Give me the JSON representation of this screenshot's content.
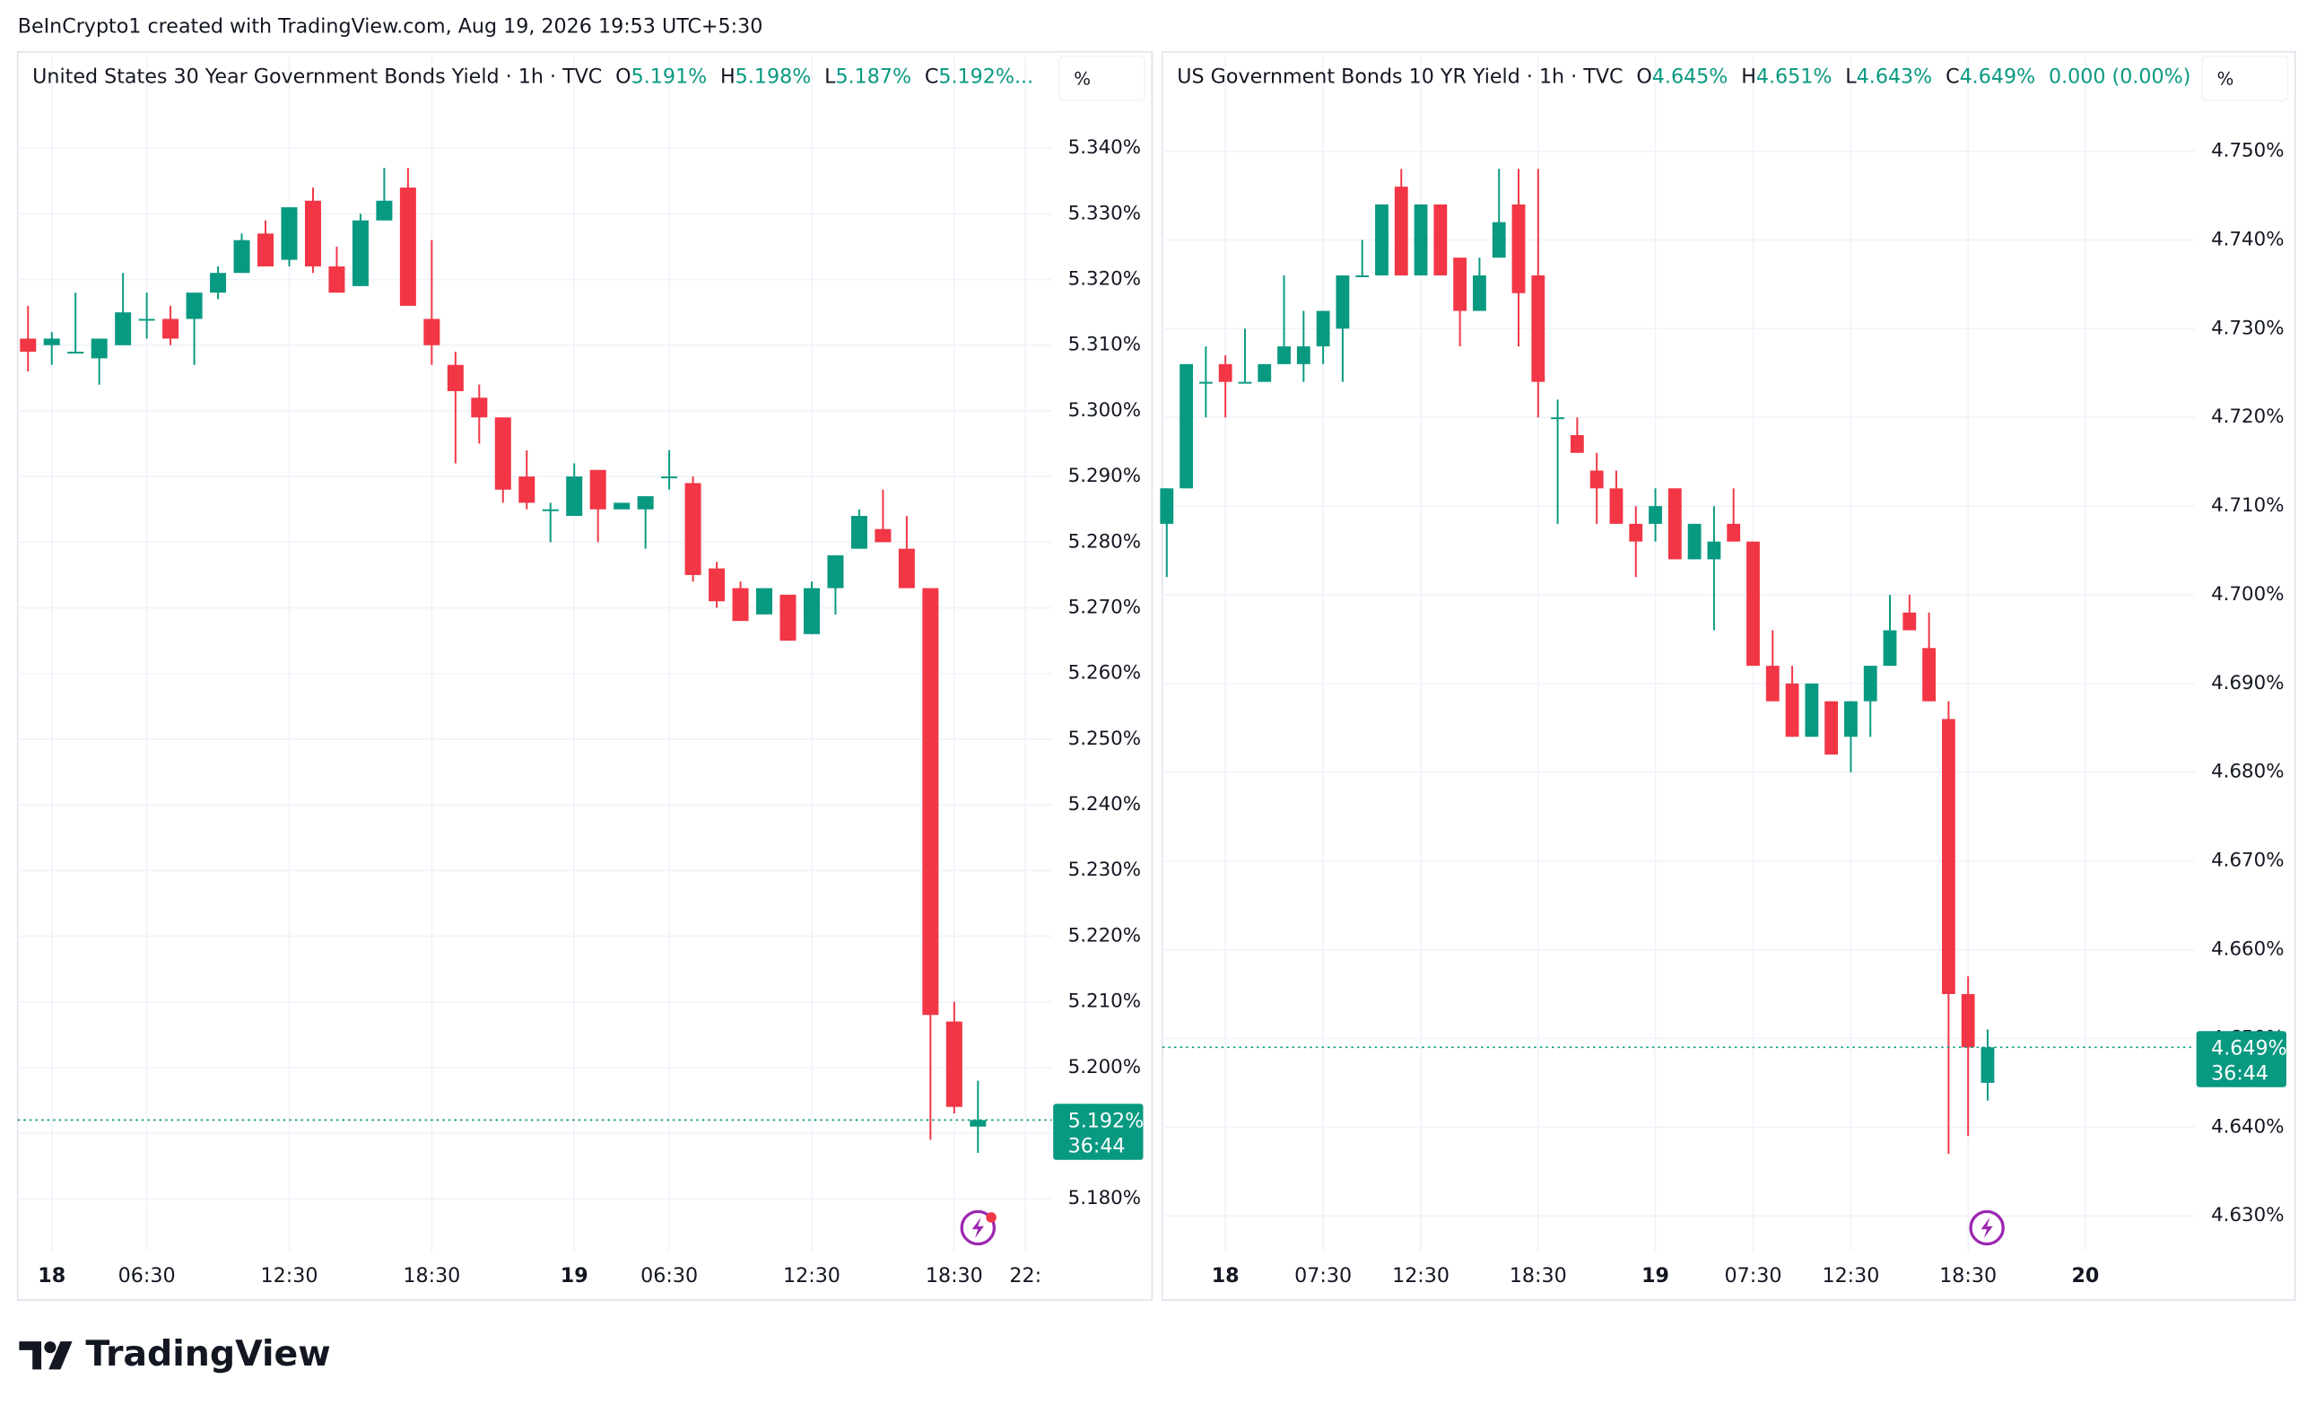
{
  "attribution": "BeInCrypto1 created with TradingView.com, Aug 19, 2026 19:53 UTC+5:30",
  "brand": "TradingView",
  "chart_data": [
    {
      "type": "candlestick",
      "title": "United States 30 Year Government Bonds Yield · 1h · TVC",
      "header_values": [
        {
          "key": "O",
          "value": "5.191%"
        },
        {
          "key": "H",
          "value": "5.198%"
        },
        {
          "key": "L",
          "value": "5.187%"
        },
        {
          "key": "C",
          "value": "5.192%..."
        }
      ],
      "unit": "%",
      "price_label": "5.192%",
      "countdown": "36:44",
      "up_color": "#089981",
      "down_color": "#f23645",
      "grid": true,
      "categories": [
        null,
        "18",
        null,
        null,
        null,
        "06:30",
        null,
        null,
        null,
        null,
        null,
        "12:30",
        null,
        null,
        null,
        null,
        null,
        "18:30",
        null,
        null,
        null,
        null,
        null,
        "19",
        null,
        null,
        null,
        "06:30",
        null,
        null,
        null,
        null,
        null,
        "12:30",
        null,
        null,
        null,
        null,
        null,
        "18:30",
        null,
        null,
        "22:"
      ],
      "open": [
        5.311,
        5.31,
        5.309,
        5.308,
        5.31,
        5.314,
        5.314,
        5.314,
        5.318,
        5.321,
        5.327,
        5.323,
        5.332,
        5.322,
        5.319,
        5.329,
        5.334,
        5.314,
        5.307,
        5.302,
        5.299,
        5.29,
        5.285,
        5.284,
        5.291,
        5.285,
        5.285,
        5.29,
        5.289,
        5.276,
        5.273,
        5.269,
        5.272,
        5.266,
        5.273,
        5.279,
        5.282,
        5.279,
        5.273,
        5.207,
        5.191,
        null,
        null
      ],
      "high": [
        5.316,
        5.312,
        5.318,
        5.311,
        5.321,
        5.318,
        5.316,
        5.318,
        5.322,
        5.327,
        5.329,
        5.331,
        5.334,
        5.325,
        5.33,
        5.337,
        5.337,
        5.326,
        5.309,
        5.304,
        5.299,
        5.294,
        5.286,
        5.292,
        5.291,
        5.286,
        5.287,
        5.294,
        5.29,
        5.277,
        5.274,
        5.273,
        5.272,
        5.274,
        5.278,
        5.285,
        5.288,
        5.284,
        5.273,
        5.21,
        5.198,
        null,
        null
      ],
      "low": [
        5.306,
        5.307,
        5.309,
        5.304,
        5.31,
        5.311,
        5.31,
        5.307,
        5.317,
        5.321,
        5.322,
        5.322,
        5.321,
        5.318,
        5.319,
        5.329,
        5.316,
        5.307,
        5.292,
        5.295,
        5.286,
        5.285,
        5.28,
        5.284,
        5.28,
        5.285,
        5.279,
        5.288,
        5.274,
        5.27,
        5.268,
        5.269,
        5.265,
        5.266,
        5.269,
        5.279,
        5.28,
        5.273,
        5.189,
        5.193,
        5.187,
        null,
        null
      ],
      "close": [
        5.309,
        5.311,
        5.309,
        5.311,
        5.315,
        5.314,
        5.311,
        5.318,
        5.321,
        5.326,
        5.322,
        5.331,
        5.322,
        5.318,
        5.329,
        5.332,
        5.316,
        5.31,
        5.303,
        5.299,
        5.288,
        5.286,
        5.285,
        5.29,
        5.285,
        5.286,
        5.287,
        5.29,
        5.275,
        5.271,
        5.268,
        5.273,
        5.265,
        5.273,
        5.278,
        5.284,
        5.28,
        5.273,
        5.208,
        5.194,
        5.192,
        null,
        null
      ],
      "ylim": [
        5.172,
        5.354
      ],
      "yticks": [
        {
          "value": 5.18,
          "label": "5.180%"
        },
        {
          "value": 5.19,
          "label": "5.190%"
        },
        {
          "value": 5.2,
          "label": "5.200%"
        },
        {
          "value": 5.21,
          "label": "5.210%"
        },
        {
          "value": 5.22,
          "label": "5.220%"
        },
        {
          "value": 5.23,
          "label": "5.230%"
        },
        {
          "value": 5.24,
          "label": "5.240%"
        },
        {
          "value": 5.25,
          "label": "5.250%"
        },
        {
          "value": 5.26,
          "label": "5.260%"
        },
        {
          "value": 5.27,
          "label": "5.270%"
        },
        {
          "value": 5.28,
          "label": "5.280%"
        },
        {
          "value": 5.29,
          "label": "5.290%"
        },
        {
          "value": 5.3,
          "label": "5.300%"
        },
        {
          "value": 5.31,
          "label": "5.310%"
        },
        {
          "value": 5.32,
          "label": "5.320%"
        },
        {
          "value": 5.33,
          "label": "5.330%"
        },
        {
          "value": 5.34,
          "label": "5.340%"
        }
      ]
    },
    {
      "type": "candlestick",
      "title": "US Government Bonds 10 YR Yield · 1h · TVC",
      "header_values": [
        {
          "key": "O",
          "value": "4.645%"
        },
        {
          "key": "H",
          "value": "4.651%"
        },
        {
          "key": "L",
          "value": "4.643%"
        },
        {
          "key": "C",
          "value": "4.649%"
        },
        {
          "value": "0.000 (0.00%)"
        }
      ],
      "unit": "%",
      "price_label": "4.649%",
      "countdown": "36:44",
      "up_color": "#089981",
      "down_color": "#f23645",
      "grid": true,
      "categories": [
        null,
        null,
        null,
        "18",
        null,
        null,
        null,
        null,
        "07:30",
        null,
        null,
        null,
        null,
        "12:30",
        null,
        null,
        null,
        null,
        null,
        "18:30",
        null,
        null,
        null,
        null,
        null,
        "19",
        null,
        null,
        null,
        null,
        "07:30",
        null,
        null,
        null,
        null,
        "12:30",
        null,
        null,
        null,
        null,
        null,
        "18:30",
        null,
        null,
        null,
        null,
        null,
        "20"
      ],
      "open": [
        4.708,
        4.712,
        4.724,
        4.726,
        4.724,
        4.724,
        4.726,
        4.726,
        4.728,
        4.73,
        4.736,
        4.736,
        4.746,
        4.736,
        4.744,
        4.738,
        4.732,
        4.738,
        4.744,
        4.736,
        4.72,
        4.718,
        4.714,
        4.712,
        4.708,
        4.708,
        4.712,
        4.704,
        4.704,
        4.708,
        4.706,
        4.692,
        4.69,
        4.684,
        4.688,
        4.684,
        4.688,
        4.692,
        4.698,
        4.694,
        4.686,
        4.655,
        4.645,
        null,
        null,
        null,
        null,
        null
      ],
      "high": [
        4.712,
        4.726,
        4.728,
        4.727,
        4.73,
        4.726,
        4.736,
        4.732,
        4.732,
        4.736,
        4.74,
        4.744,
        4.748,
        4.744,
        4.744,
        4.738,
        4.738,
        4.748,
        4.748,
        4.748,
        4.722,
        4.72,
        4.716,
        4.714,
        4.71,
        4.712,
        4.712,
        4.708,
        4.71,
        4.712,
        4.706,
        4.696,
        4.692,
        4.69,
        4.688,
        4.688,
        4.692,
        4.7,
        4.7,
        4.698,
        4.688,
        4.657,
        4.651,
        null,
        null,
        null,
        null,
        null
      ],
      "low": [
        4.702,
        4.712,
        4.72,
        4.72,
        4.724,
        4.724,
        4.726,
        4.724,
        4.726,
        4.724,
        4.736,
        4.736,
        4.736,
        4.736,
        4.736,
        4.728,
        4.732,
        4.738,
        4.728,
        4.72,
        4.708,
        4.716,
        4.708,
        4.708,
        4.702,
        4.706,
        4.704,
        4.704,
        4.696,
        4.706,
        4.692,
        4.688,
        4.684,
        4.684,
        4.682,
        4.68,
        4.684,
        4.692,
        4.696,
        4.688,
        4.637,
        4.639,
        4.643,
        null,
        null,
        null,
        null,
        null
      ],
      "close": [
        4.712,
        4.726,
        4.724,
        4.724,
        4.724,
        4.726,
        4.728,
        4.728,
        4.732,
        4.736,
        4.736,
        4.744,
        4.736,
        4.744,
        4.736,
        4.732,
        4.736,
        4.742,
        4.734,
        4.724,
        4.72,
        4.716,
        4.712,
        4.708,
        4.706,
        4.71,
        4.704,
        4.708,
        4.706,
        4.706,
        4.692,
        4.688,
        4.684,
        4.69,
        4.682,
        4.688,
        4.692,
        4.696,
        4.696,
        4.688,
        4.655,
        4.649,
        4.649,
        null,
        null,
        null,
        null,
        null
      ],
      "ylim": [
        4.626,
        4.7607
      ],
      "yticks": [
        {
          "value": 4.63,
          "label": "4.630%"
        },
        {
          "value": 4.64,
          "label": "4.640%"
        },
        {
          "value": 4.65,
          "label": "4.650%"
        },
        {
          "value": 4.66,
          "label": "4.660%"
        },
        {
          "value": 4.67,
          "label": "4.670%"
        },
        {
          "value": 4.68,
          "label": "4.680%"
        },
        {
          "value": 4.69,
          "label": "4.690%"
        },
        {
          "value": 4.7,
          "label": "4.700%"
        },
        {
          "value": 4.71,
          "label": "4.710%"
        },
        {
          "value": 4.72,
          "label": "4.720%"
        },
        {
          "value": 4.73,
          "label": "4.730%"
        },
        {
          "value": 4.74,
          "label": "4.740%"
        },
        {
          "value": 4.75,
          "label": "4.750%"
        }
      ]
    }
  ]
}
